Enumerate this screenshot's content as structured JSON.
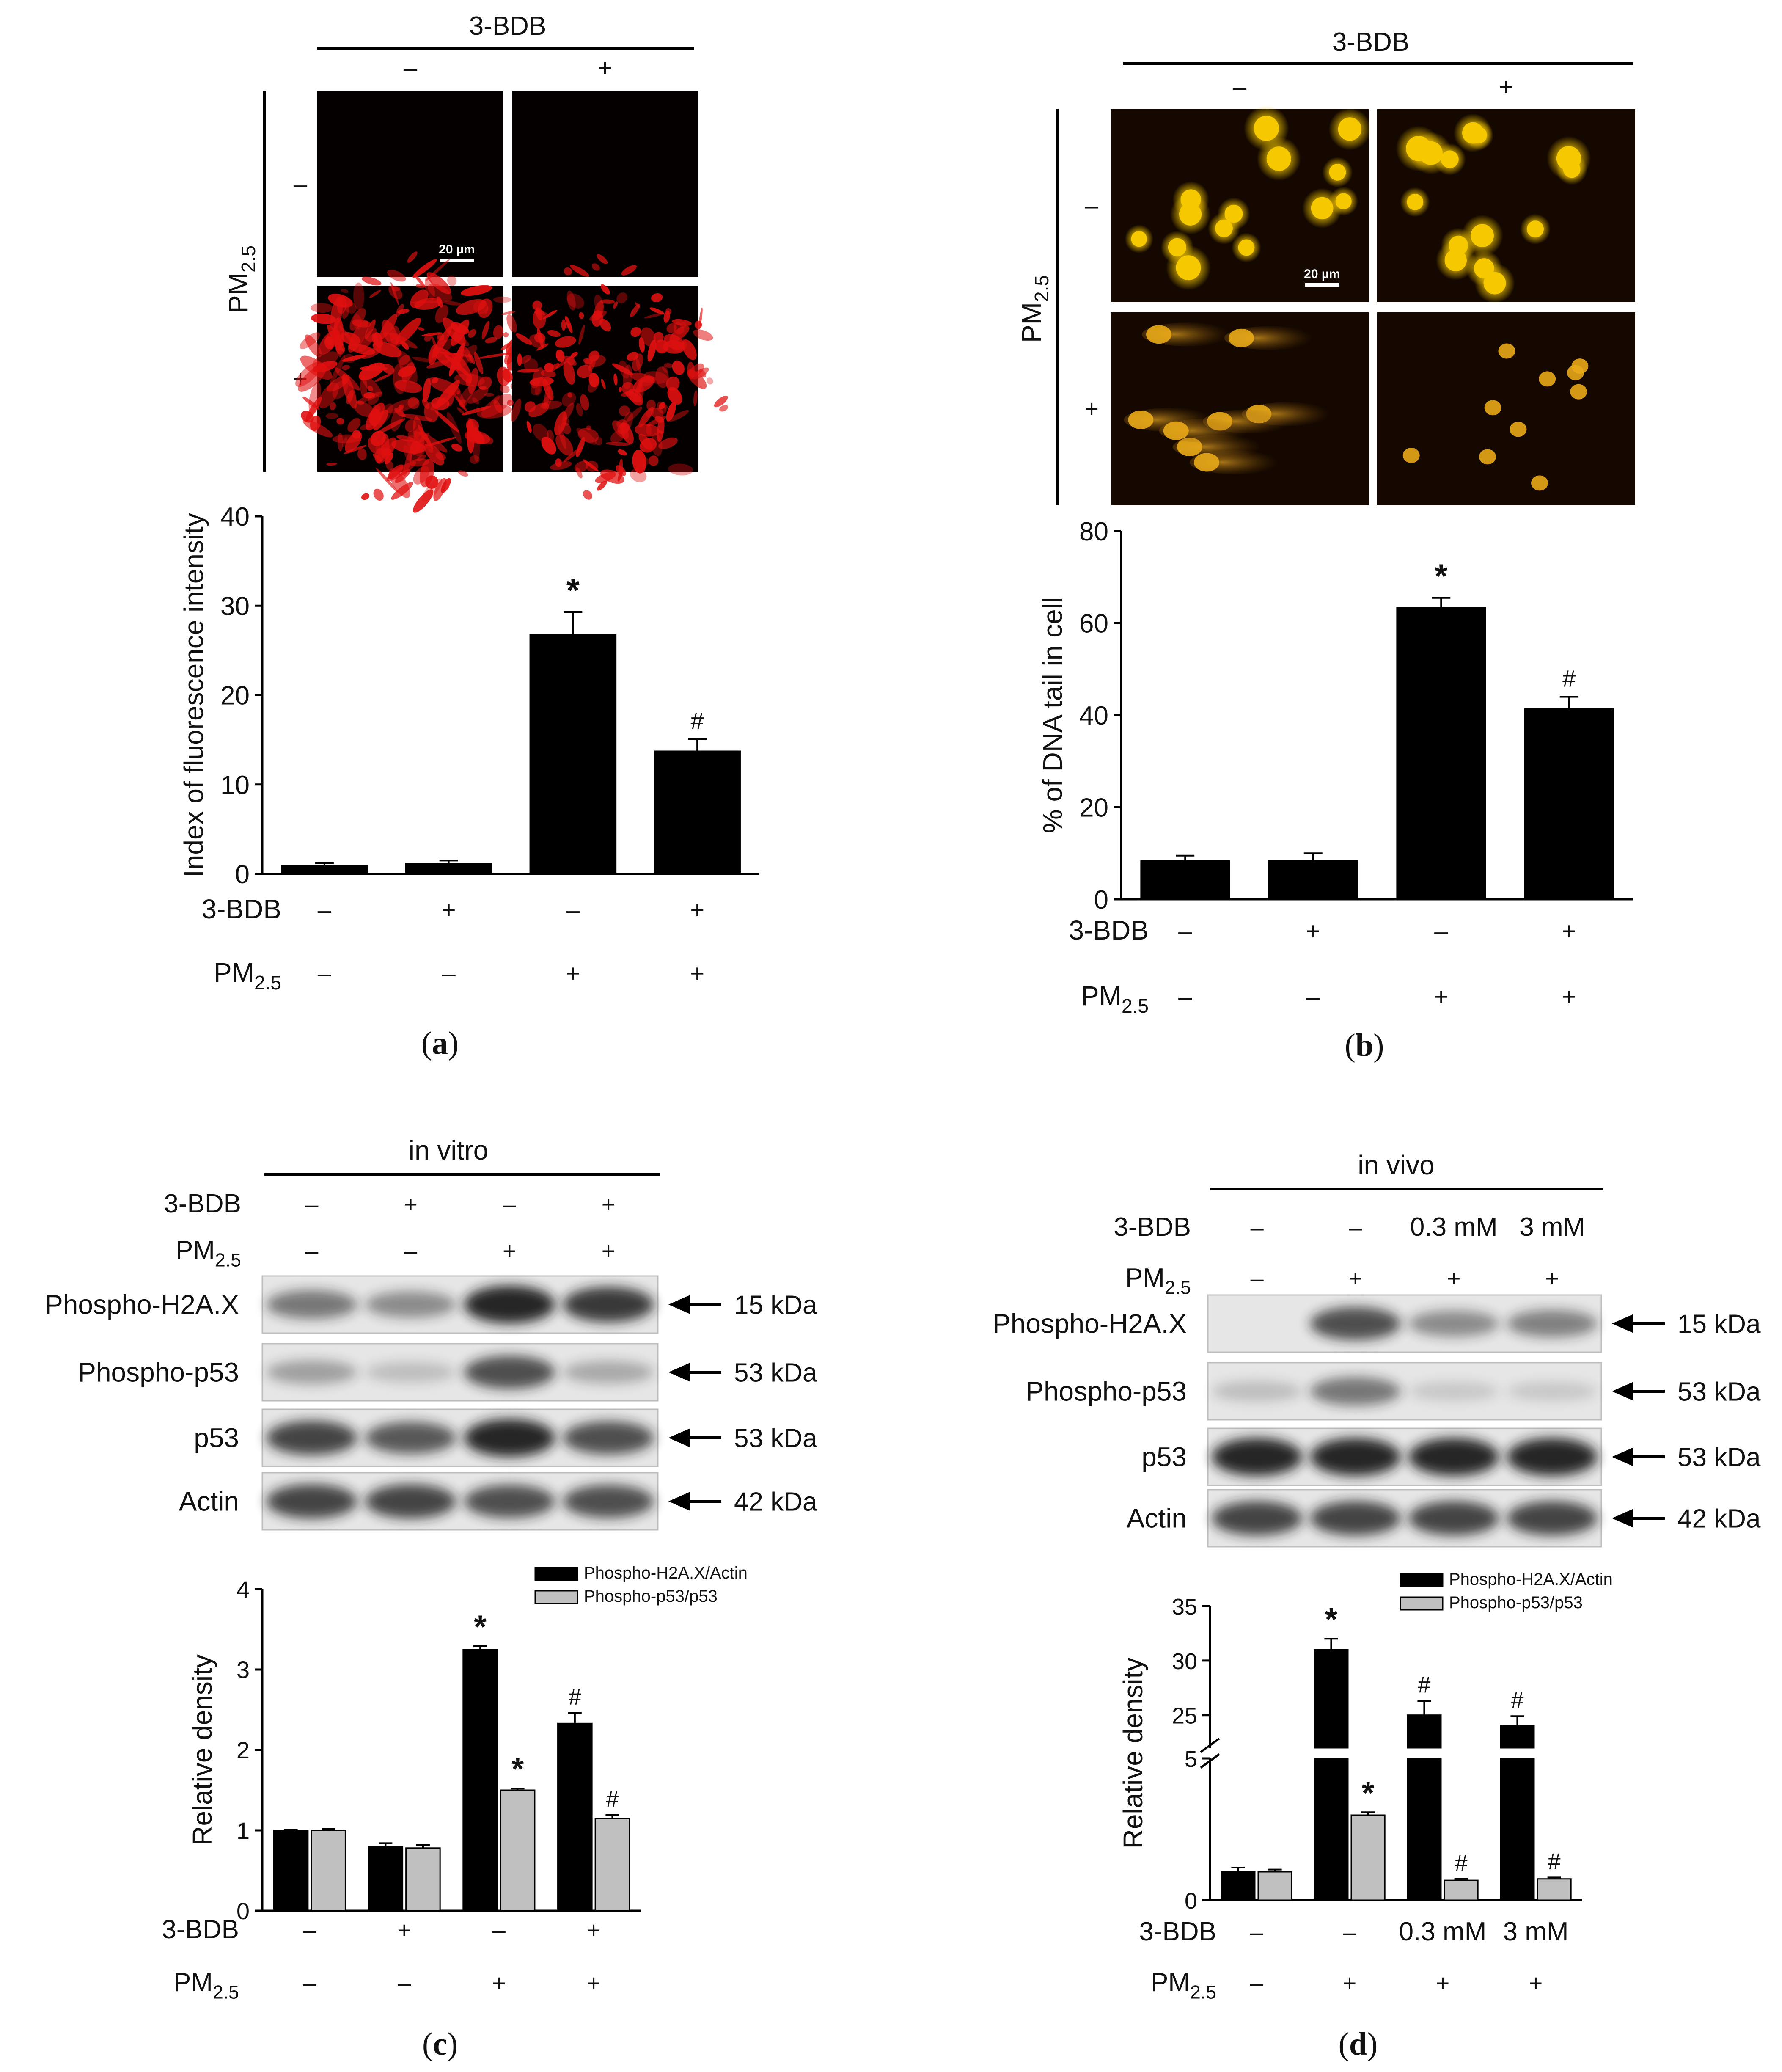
{
  "symbols": {
    "minus": "–",
    "plus": "+",
    "star": "*",
    "hash": "#",
    "sub25": "2.5"
  },
  "colors": {
    "bar_black": "#000000",
    "bar_gray": "#c0c0c0",
    "fluor_red": "#e01010",
    "comet_yellow": "#f5c800",
    "blot_band": "#1a1a1a"
  },
  "panel_a": {
    "label": "a",
    "header": "3-BDB",
    "cond": [
      "–",
      "+"
    ],
    "row_label": "PM",
    "row_sub": "2.5",
    "rows": [
      "–",
      "+"
    ],
    "scale_bar": "20 µm",
    "chart_data": {
      "type": "bar",
      "title": "",
      "ylabel": "Index of fluorescence intensity",
      "ylim": [
        0,
        40
      ],
      "yticks": [
        "0",
        "10",
        "20",
        "30",
        "40"
      ],
      "rows": [
        {
          "label": "3-BDB",
          "values": [
            "–",
            "+",
            "–",
            "+"
          ]
        },
        {
          "label": "PM",
          "sub": "2.5",
          "values": [
            "–",
            "–",
            "+",
            "+"
          ]
        }
      ],
      "series": [
        {
          "values": [
            1.0,
            1.2,
            26.8,
            13.8
          ],
          "errors": [
            0.2,
            0.3,
            2.5,
            1.3
          ]
        }
      ],
      "annotations": [
        "",
        "",
        "*",
        "#"
      ]
    }
  },
  "panel_b": {
    "label": "b",
    "header": "3-BDB",
    "cond": [
      "–",
      "+"
    ],
    "row_label": "PM",
    "row_sub": "2.5",
    "rows": [
      "–",
      "+"
    ],
    "scale_bar": "20 µm",
    "chart_data": {
      "type": "bar",
      "title": "",
      "ylabel": "% of DNA tail in cell",
      "ylim": [
        0,
        80
      ],
      "yticks": [
        "0",
        "20",
        "40",
        "60",
        "80"
      ],
      "rows": [
        {
          "label": "3-BDB",
          "values": [
            "–",
            "+",
            "–",
            "+"
          ]
        },
        {
          "label": "PM",
          "sub": "2.5",
          "values": [
            "–",
            "–",
            "+",
            "+"
          ]
        }
      ],
      "series": [
        {
          "values": [
            8.5,
            8.5,
            63.5,
            41.5
          ],
          "errors": [
            1.0,
            1.5,
            2.0,
            2.5
          ]
        }
      ],
      "annotations": [
        "",
        "",
        "*",
        "#"
      ]
    }
  },
  "panel_c": {
    "label": "c",
    "header": "in vitro",
    "cond_rows": [
      {
        "label": "3-BDB",
        "values": [
          "–",
          "+",
          "–",
          "+"
        ]
      },
      {
        "label": "PM",
        "sub": "2.5",
        "values": [
          "–",
          "–",
          "+",
          "+"
        ]
      }
    ],
    "blots": [
      {
        "name": "Phospho-H2A.X",
        "kda": "15 kDa",
        "intensity": [
          0.55,
          0.45,
          0.95,
          0.85
        ]
      },
      {
        "name": "Phospho-p53",
        "kda": "53 kDa",
        "intensity": [
          0.35,
          0.2,
          0.75,
          0.3
        ]
      },
      {
        "name": "p53",
        "kda": "53 kDa",
        "intensity": [
          0.8,
          0.7,
          0.95,
          0.75
        ]
      },
      {
        "name": "Actin",
        "kda": "42 kDa",
        "intensity": [
          0.8,
          0.8,
          0.75,
          0.75
        ]
      }
    ],
    "chart_data": {
      "type": "bar",
      "title": "",
      "ylabel": "Relative density",
      "ylim": [
        0,
        4
      ],
      "yticks": [
        "0",
        "1",
        "2",
        "3",
        "4"
      ],
      "legend": [
        "Phospho-H2A.X/Actin",
        "Phospho-p53/p53"
      ],
      "legend_position": "top-right",
      "rows": [
        {
          "label": "3-BDB",
          "values": [
            "–",
            "+",
            "–",
            "+"
          ]
        },
        {
          "label": "PM",
          "sub": "2.5",
          "values": [
            "–",
            "–",
            "+",
            "+"
          ]
        }
      ],
      "series": [
        {
          "name": "Phospho-H2A.X/Actin",
          "values": [
            1.0,
            0.8,
            3.25,
            2.33
          ],
          "errors": [
            0.01,
            0.04,
            0.04,
            0.13
          ],
          "annotations": [
            "",
            "",
            "*",
            "#"
          ]
        },
        {
          "name": "Phospho-p53/p53",
          "values": [
            1.0,
            0.78,
            1.5,
            1.15
          ],
          "errors": [
            0.02,
            0.04,
            0.02,
            0.04
          ],
          "annotations": [
            "",
            "",
            "*",
            "#"
          ]
        }
      ]
    }
  },
  "panel_d": {
    "label": "d",
    "header": "in vivo",
    "cond_rows": [
      {
        "label": "3-BDB",
        "values": [
          "–",
          "–",
          "0.3 mM",
          "3 mM"
        ]
      },
      {
        "label": "PM",
        "sub": "2.5",
        "values": [
          "–",
          "+",
          "+",
          "+"
        ]
      }
    ],
    "blots": [
      {
        "name": "Phospho-H2A.X",
        "kda": "15 kDa",
        "intensity": [
          0.0,
          0.75,
          0.45,
          0.5
        ]
      },
      {
        "name": "Phospho-p53",
        "kda": "53 kDa",
        "intensity": [
          0.2,
          0.55,
          0.15,
          0.15
        ]
      },
      {
        "name": "p53",
        "kda": "53 kDa",
        "intensity": [
          0.95,
          0.95,
          0.95,
          0.95
        ]
      },
      {
        "name": "Actin",
        "kda": "42 kDa",
        "intensity": [
          0.8,
          0.8,
          0.8,
          0.8
        ]
      }
    ],
    "chart_data": {
      "type": "bar",
      "title": "",
      "ylabel": "Relative density",
      "axis_break": true,
      "lower_ylim": [
        0,
        5
      ],
      "lower_yticks": [
        "0",
        "5"
      ],
      "upper_ylim": [
        22,
        35
      ],
      "upper_yticks": [
        "25",
        "30",
        "35"
      ],
      "legend": [
        "Phospho-H2A.X/Actin",
        "Phospho-p53/p53"
      ],
      "legend_position": "top-right",
      "rows": [
        {
          "label": "3-BDB",
          "values": [
            "–",
            "–",
            "0.3 mM",
            "3 mM"
          ]
        },
        {
          "label": "PM",
          "sub": "2.5",
          "values": [
            "–",
            "+",
            "+",
            "+"
          ]
        }
      ],
      "series": [
        {
          "name": "Phospho-H2A.X/Actin",
          "values": [
            1.0,
            31.0,
            25.0,
            24.0
          ],
          "errors": [
            0.15,
            1.0,
            1.3,
            0.9
          ],
          "annotations": [
            "",
            "*",
            "#",
            "#"
          ]
        },
        {
          "name": "Phospho-p53/p53",
          "values": [
            1.0,
            3.0,
            0.7,
            0.75
          ],
          "errors": [
            0.08,
            0.1,
            0.05,
            0.05
          ],
          "annotations": [
            "",
            "*",
            "#",
            "#"
          ]
        }
      ]
    }
  }
}
